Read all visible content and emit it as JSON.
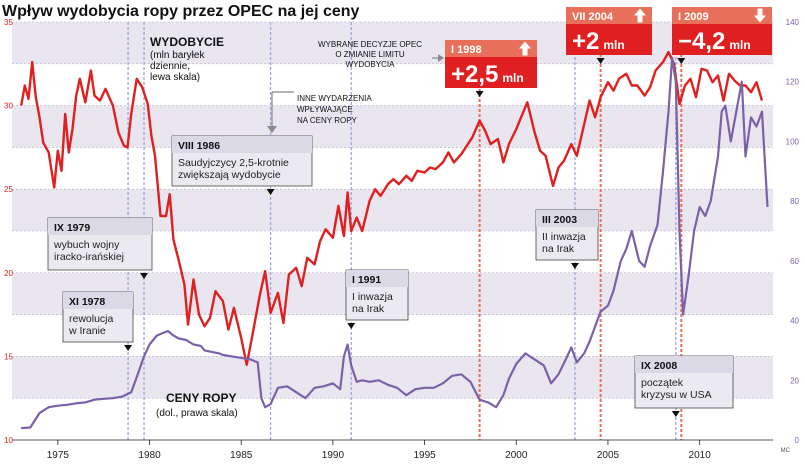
{
  "chart_data": {
    "type": "line",
    "title": "Wpływ wydobycia ropy przez OPEC na jej ceny",
    "credit": "MC",
    "x_ticks": [
      "1975",
      "1980",
      "1985",
      "1990",
      "1995",
      "2000",
      "2005",
      "2010"
    ],
    "x_tick_values": [
      1975,
      1980,
      1985,
      1990,
      1995,
      2000,
      2005,
      2010
    ],
    "xlim": [
      1972.5,
      2014.0
    ],
    "y_left": {
      "ylim": [
        10,
        35
      ],
      "ticks": [
        "10",
        "15",
        "20",
        "25",
        "30",
        "35"
      ],
      "tick_values": [
        10,
        15,
        20,
        25,
        30,
        35
      ]
    },
    "y_right": {
      "ylim": [
        0,
        140
      ],
      "ticks": [
        "0",
        "20",
        "40",
        "60",
        "80",
        "100",
        "120",
        "140"
      ],
      "tick_values": [
        0,
        20,
        40,
        60,
        80,
        100,
        120,
        140
      ]
    },
    "series": [
      {
        "name": "production",
        "label_title": "WYDOBYCIE",
        "label_lines": [
          "(mln baryłek",
          "dziennie,",
          "lewa skala)"
        ],
        "axis": "left",
        "color": "#e02020",
        "x": [
          1973.0,
          1973.2,
          1973.4,
          1973.6,
          1973.8,
          1974.0,
          1974.2,
          1974.5,
          1974.8,
          1975.0,
          1975.2,
          1975.4,
          1975.6,
          1975.8,
          1976.0,
          1976.2,
          1976.5,
          1976.8,
          1977.0,
          1977.3,
          1977.6,
          1978.0,
          1978.3,
          1978.6,
          1978.8,
          1979.0,
          1979.3,
          1979.6,
          1979.9,
          1980.1,
          1980.3,
          1980.6,
          1980.9,
          1981.1,
          1981.3,
          1981.6,
          1981.9,
          1982.1,
          1982.4,
          1982.7,
          1983.0,
          1983.3,
          1983.6,
          1984.0,
          1984.3,
          1984.6,
          1985.0,
          1985.3,
          1985.6,
          1986.0,
          1986.3,
          1986.6,
          1987.0,
          1987.3,
          1987.6,
          1988.0,
          1988.3,
          1988.6,
          1989.0,
          1989.3,
          1989.6,
          1990.0,
          1990.3,
          1990.6,
          1990.8,
          1991.0,
          1991.3,
          1991.6,
          1992.0,
          1992.3,
          1992.6,
          1993.0,
          1993.3,
          1993.6,
          1994.0,
          1994.3,
          1994.6,
          1995.0,
          1995.3,
          1995.6,
          1996.0,
          1996.3,
          1996.6,
          1997.0,
          1997.3,
          1997.6,
          1998.0,
          1998.3,
          1998.6,
          1999.0,
          1999.3,
          1999.6,
          2000.0,
          2000.3,
          2000.6,
          2001.0,
          2001.3,
          2001.6,
          2002.0,
          2002.3,
          2002.6,
          2003.0,
          2003.3,
          2003.6,
          2004.0,
          2004.3,
          2004.6,
          2005.0,
          2005.3,
          2005.6,
          2006.0,
          2006.3,
          2006.6,
          2007.0,
          2007.3,
          2007.6,
          2008.0,
          2008.3,
          2008.6,
          2008.9,
          2009.2,
          2009.5,
          2009.8,
          2010.1,
          2010.4,
          2010.7,
          2011.0,
          2011.3,
          2011.6,
          2011.9,
          2012.2,
          2012.5,
          2012.8,
          2013.1,
          2013.4
        ],
        "values": [
          30.0,
          31.2,
          30.4,
          32.6,
          30.5,
          29.3,
          27.8,
          27.2,
          25.1,
          27.3,
          26.1,
          29.5,
          27.2,
          28.6,
          30.6,
          31.6,
          30.2,
          32.1,
          30.6,
          30.3,
          31.0,
          30.0,
          28.4,
          27.6,
          27.5,
          29.5,
          31.6,
          31.1,
          30.1,
          28.2,
          27.0,
          23.4,
          23.4,
          24.7,
          22.0,
          20.7,
          19.3,
          16.9,
          19.6,
          17.5,
          16.8,
          17.3,
          18.9,
          18.3,
          16.6,
          17.9,
          16.1,
          14.5,
          16.2,
          18.6,
          20.1,
          17.6,
          18.8,
          17.0,
          19.9,
          20.3,
          19.2,
          20.9,
          20.5,
          21.9,
          22.6,
          22.1,
          24.0,
          22.2,
          24.8,
          22.5,
          23.3,
          22.5,
          24.3,
          25.0,
          24.6,
          25.3,
          25.6,
          25.3,
          25.8,
          25.5,
          26.1,
          26.0,
          26.3,
          26.2,
          26.6,
          27.2,
          26.6,
          27.1,
          27.6,
          28.1,
          29.1,
          28.5,
          27.7,
          28.0,
          26.6,
          27.7,
          28.6,
          29.4,
          30.2,
          28.4,
          27.3,
          27.0,
          25.2,
          26.3,
          26.7,
          27.7,
          27.0,
          28.4,
          30.3,
          29.3,
          30.5,
          31.4,
          30.9,
          31.6,
          31.9,
          31.2,
          31.2,
          30.6,
          31.1,
          32.1,
          32.6,
          33.2,
          32.5,
          30.1,
          31.2,
          31.6,
          30.5,
          32.2,
          32.1,
          31.4,
          31.8,
          30.3,
          31.9,
          31.5,
          31.2,
          31.2,
          30.8,
          31.4,
          30.3
        ]
      },
      {
        "name": "price",
        "label_title": "CENY ROPY",
        "label_lines": [
          "(dol., prawa skala)"
        ],
        "axis": "right",
        "color": "#7b61a8",
        "x": [
          1973.0,
          1973.5,
          1974.0,
          1974.5,
          1975.0,
          1975.5,
          1976.0,
          1976.5,
          1977.0,
          1977.5,
          1978.0,
          1978.5,
          1979.0,
          1979.3,
          1979.7,
          1980.0,
          1980.4,
          1980.8,
          1981.0,
          1981.3,
          1981.6,
          1982.0,
          1982.4,
          1982.8,
          1983.0,
          1983.4,
          1983.8,
          1984.0,
          1984.5,
          1985.0,
          1985.5,
          1985.9,
          1986.1,
          1986.3,
          1986.6,
          1987.0,
          1987.5,
          1988.0,
          1988.5,
          1989.0,
          1989.5,
          1990.0,
          1990.4,
          1990.6,
          1990.8,
          1991.0,
          1991.3,
          1991.6,
          1992.0,
          1992.5,
          1993.0,
          1993.5,
          1994.0,
          1994.5,
          1995.0,
          1995.5,
          1996.0,
          1996.5,
          1997.0,
          1997.5,
          1998.0,
          1998.5,
          1998.9,
          1999.3,
          1999.6,
          2000.0,
          2000.5,
          2001.0,
          2001.5,
          2001.9,
          2002.3,
          2002.7,
          2003.0,
          2003.3,
          2003.7,
          2004.0,
          2004.3,
          2004.6,
          2005.0,
          2005.3,
          2005.7,
          2006.0,
          2006.3,
          2006.7,
          2007.0,
          2007.3,
          2007.7,
          2008.0,
          2008.3,
          2008.5,
          2008.7,
          2008.9,
          2009.1,
          2009.4,
          2009.7,
          2010.0,
          2010.3,
          2010.6,
          2011.0,
          2011.2,
          2011.4,
          2011.7,
          2012.0,
          2012.3,
          2012.5,
          2012.8,
          2013.1,
          2013.4,
          2013.7
        ],
        "values": [
          4.0,
          4.2,
          9.0,
          11.0,
          11.5,
          11.8,
          12.3,
          12.6,
          13.5,
          13.8,
          14.0,
          14.5,
          16.0,
          21.0,
          28.0,
          32.0,
          35.0,
          36.0,
          36.5,
          35.0,
          34.0,
          33.5,
          32.0,
          31.5,
          30.0,
          29.5,
          29.0,
          28.5,
          28.0,
          27.5,
          27.0,
          26.0,
          14.0,
          11.0,
          12.0,
          17.5,
          18.0,
          16.0,
          14.0,
          17.5,
          18.0,
          19.0,
          17.0,
          28.0,
          32.0,
          25.0,
          19.5,
          20.0,
          19.5,
          20.0,
          18.5,
          17.5,
          15.0,
          17.0,
          17.5,
          17.5,
          19.0,
          21.5,
          22.0,
          19.5,
          13.5,
          12.5,
          11.0,
          15.0,
          20.5,
          25.5,
          29.0,
          27.0,
          25.0,
          19.0,
          22.0,
          27.0,
          31.0,
          26.0,
          29.0,
          33.0,
          38.0,
          43.0,
          45.0,
          50.0,
          60.0,
          64.0,
          70.0,
          60.0,
          58.0,
          65.0,
          72.0,
          90.0,
          110.0,
          128.0,
          120.0,
          70.0,
          42.0,
          55.0,
          70.0,
          78.0,
          75.0,
          80.0,
          95.0,
          110.0,
          112.0,
          100.0,
          110.0,
          120.0,
          95.0,
          108.0,
          105.0,
          110.0,
          78.0
        ]
      }
    ],
    "band_labels": {
      "upper": "WYBRANE DECYZJE OPEC O ZMIANIE LIMITU WYDOBYCIA",
      "lower": "INNE WYDARZENIA WPŁYWAJĄCE NA CENY ROPY"
    },
    "events": [
      {
        "x": 1978.83,
        "date": "XI 1978",
        "lines": [
          "rewolucja",
          "w Iranie"
        ]
      },
      {
        "x": 1979.7,
        "date": "IX 1979",
        "lines": [
          "wybuch wojny",
          "iracko-irańskiej"
        ]
      },
      {
        "x": 1986.6,
        "date": "VIII 1986",
        "lines": [
          "Saudyjczycy 2,5-krotnie",
          "zwiększają wydobycie"
        ]
      },
      {
        "x": 1991.0,
        "date": "I 1991",
        "lines": [
          "I inwazja",
          "na Irak"
        ]
      },
      {
        "x": 2003.2,
        "date": "III 2003",
        "lines": [
          "II inwazja",
          "na Irak"
        ]
      },
      {
        "x": 2008.7,
        "date": "IX 2008",
        "lines": [
          "początek",
          "kryzysu w USA"
        ]
      }
    ],
    "decisions": [
      {
        "x": 1998.0,
        "date": "I 1998",
        "change": "+2,5",
        "unit": "mln",
        "direction": "up"
      },
      {
        "x": 2004.6,
        "date": "VII 2004",
        "change": "+2",
        "unit": "mln",
        "direction": "up"
      },
      {
        "x": 2009.0,
        "date": "I 2009",
        "change": "−4,2",
        "unit": "mln",
        "direction": "down"
      }
    ],
    "colors": {
      "production": "#e02020",
      "price": "#7b61a8",
      "band": "#e9e6ef",
      "decision_box": "#e8705a",
      "event_box": "#ebeaf0",
      "grid": "#b0aac4"
    }
  }
}
